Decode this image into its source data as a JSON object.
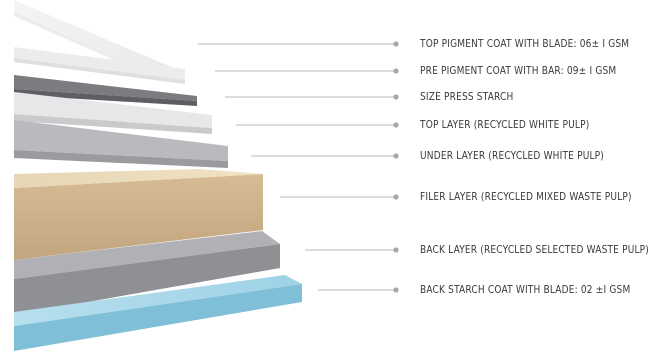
{
  "layers": [
    {
      "label": "TOP PIGMENT COAT WITH BLADE: 06± I GSM",
      "color": "#f2f2f3"
    },
    {
      "label": "PRE PIGMENT COAT WITH BAR: 09± I GSM",
      "color": "#e7e8ea"
    },
    {
      "label": "SIZE PRESS STARCH",
      "color": "#77787b"
    },
    {
      "label": "TOP LAYER (RECYCLED WHITE PULP)",
      "color": "#e3e3e5"
    },
    {
      "label": "UNDER LAYER (RECYCLED WHITE PULP)",
      "color": "#b5b6b9"
    },
    {
      "label": "FILER LAYER (RECYCLED MIXED WASTE PULP)",
      "color": "#cdb18c"
    },
    {
      "label": "BACK LAYER (RECYCLED SELECTED WASTE PULP)",
      "color": "#a7a8ab"
    },
    {
      "label": "BACK STARCH COAT WITH BLADE: 02 ±I GSM",
      "color": "#a9d6e6"
    }
  ],
  "colors": {
    "leader_line": "#b9b9b9",
    "leader_dot": "#a8a8a8"
  }
}
